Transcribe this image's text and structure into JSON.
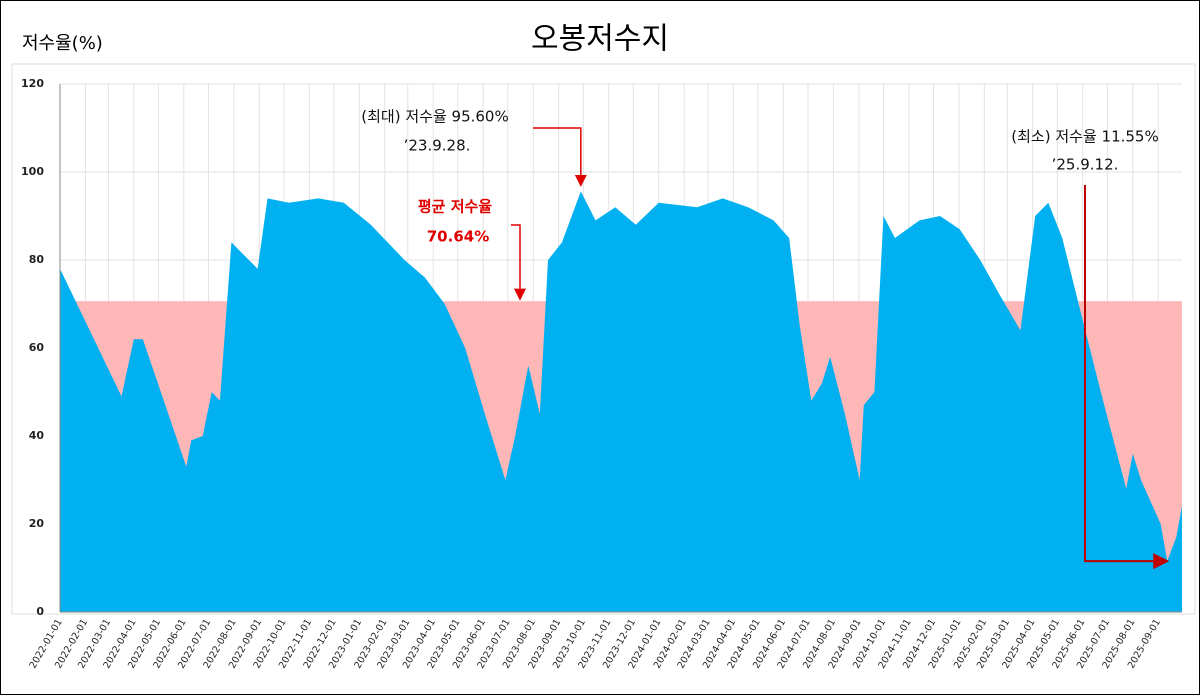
{
  "chart_data": {
    "type": "area",
    "title": "오봉저수지",
    "y_label": "저수율(%)",
    "color": "#00b0f0",
    "grid": true,
    "xlim": [
      "2022-01-01",
      "2025-09-30"
    ],
    "ylim": [
      0,
      120
    ],
    "yticks": [
      0,
      20,
      40,
      60,
      80,
      100,
      120
    ],
    "xticks": [
      "2022-01-01",
      "2022-02-01",
      "2022-03-01",
      "2022-04-01",
      "2022-05-01",
      "2022-06-01",
      "2022-07-01",
      "2022-08-01",
      "2022-09-01",
      "2022-10-01",
      "2022-11-01",
      "2022-12-01",
      "2023-01-01",
      "2023-02-01",
      "2023-03-01",
      "2023-04-01",
      "2023-05-01",
      "2023-06-01",
      "2023-07-01",
      "2023-08-01",
      "2023-09-01",
      "2023-10-01",
      "2023-11-01",
      "2023-12-01",
      "2024-01-01",
      "2024-02-01",
      "2024-03-01",
      "2024-04-01",
      "2024-05-01",
      "2024-06-01",
      "2024-07-01",
      "2024-08-01",
      "2024-09-01",
      "2024-10-01",
      "2024-11-01",
      "2024-12-01",
      "2025-01-01",
      "2025-02-01",
      "2025-03-01",
      "2025-04-01",
      "2025-05-01",
      "2025-06-01",
      "2025-07-01",
      "2025-08-01",
      "2025-09-01"
    ],
    "x": [
      "2022-01-01",
      "2022-03-17",
      "2022-04-01",
      "2022-04-12",
      "2022-06-04",
      "2022-06-10",
      "2022-06-24",
      "2022-07-05",
      "2022-07-15",
      "2022-07-29",
      "2022-08-30",
      "2022-09-11",
      "2022-10-07",
      "2022-11-12",
      "2022-12-13",
      "2023-01-15",
      "2023-02-25",
      "2023-03-22",
      "2023-04-15",
      "2023-05-10",
      "2023-06-03",
      "2023-06-28",
      "2023-07-10",
      "2023-07-26",
      "2023-08-09",
      "2023-08-19",
      "2023-09-05",
      "2023-09-28",
      "2023-10-16",
      "2023-11-09",
      "2023-12-04",
      "2024-01-01",
      "2024-02-17",
      "2024-03-19",
      "2024-04-19",
      "2024-05-20",
      "2024-06-08",
      "2024-06-21",
      "2024-07-05",
      "2024-07-18",
      "2024-07-28",
      "2024-08-15",
      "2024-09-02",
      "2024-09-07",
      "2024-09-20",
      "2024-10-01",
      "2024-10-15",
      "2024-11-14",
      "2024-12-09",
      "2025-01-02",
      "2025-01-27",
      "2025-02-20",
      "2025-03-17",
      "2025-04-04",
      "2025-04-20",
      "2025-05-07",
      "2025-05-27",
      "2025-06-23",
      "2025-07-24",
      "2025-08-01",
      "2025-08-11",
      "2025-09-04",
      "2025-09-12",
      "2025-09-23",
      "2025-09-30"
    ],
    "values": [
      78,
      49,
      62,
      62,
      33,
      39,
      40,
      50,
      48,
      84,
      78,
      94,
      93,
      94,
      93,
      88,
      80,
      76,
      70,
      60,
      45,
      30,
      40,
      56,
      45,
      80,
      84,
      95.6,
      89,
      92,
      88,
      93,
      92,
      94,
      92,
      89,
      85,
      65,
      48,
      52,
      58,
      45,
      30,
      47,
      50,
      90,
      85,
      89,
      90,
      87,
      80,
      72,
      64,
      90,
      93,
      85,
      70,
      50,
      28,
      36,
      30,
      20,
      11.55,
      17,
      24
    ],
    "average": {
      "label": "평균 저수율",
      "value_label": "70.64%",
      "value": 70.64,
      "color": "#ffb3b3"
    },
    "annotations": [
      {
        "label": "(최대) 저수율 95.60%",
        "date_label": "’23.9.28.",
        "x": "2023-09-28",
        "value": 95.6
      },
      {
        "label": "(최소) 저수율 11.55%",
        "date_label": "’25.9.12.",
        "x": "2025-09-12",
        "value": 11.55
      }
    ]
  }
}
